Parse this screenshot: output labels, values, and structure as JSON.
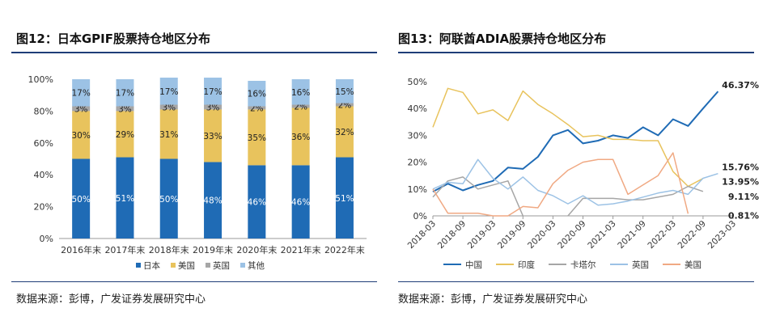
{
  "left": {
    "title": "图12：日本GPIF股票持仓地区分布",
    "source": "数据来源：彭博，广发证券发展研究中心",
    "chart_data": {
      "type": "bar",
      "stacked": true,
      "categories": [
        "2016年末",
        "2017年末",
        "2018年末",
        "2019年末",
        "2020年末",
        "2021年末",
        "2022年末"
      ],
      "yticks": [
        "0%",
        "20%",
        "40%",
        "60%",
        "80%",
        "100%"
      ],
      "ylim": [
        0,
        100
      ],
      "legend_position": "bottom",
      "series": [
        {
          "name": "日本",
          "color": "#1f6bb5",
          "values": [
            50,
            51,
            50,
            48,
            46,
            46,
            51
          ],
          "labels": [
            "50%",
            "51%",
            "50%",
            "48%",
            "46%",
            "46%",
            "51%"
          ]
        },
        {
          "name": "美国",
          "color": "#e8c35d",
          "values": [
            30,
            29,
            31,
            33,
            35,
            36,
            32
          ],
          "labels": [
            "30%",
            "29%",
            "31%",
            "33%",
            "35%",
            "36%",
            "32%"
          ]
        },
        {
          "name": "英国",
          "color": "#a6a6a6",
          "values": [
            3,
            3,
            3,
            3,
            2,
            2,
            2
          ],
          "labels": [
            "3%",
            "3%",
            "3%",
            "3%",
            "2%",
            "2%",
            "2%"
          ]
        },
        {
          "name": "其他",
          "color": "#9cc2e5",
          "values": [
            17,
            17,
            17,
            17,
            16,
            16,
            15
          ],
          "labels": [
            "17%",
            "17%",
            "17%",
            "17%",
            "16%",
            "16%",
            "15%"
          ]
        }
      ]
    }
  },
  "right": {
    "title": "图13：阿联酋ADIA股票持仓地区分布",
    "source": "数据来源：彭博，广发证券发展研究中心",
    "chart_data": {
      "type": "line",
      "x": [
        "2018-03",
        "2018-06",
        "2018-09",
        "2018-12",
        "2019-03",
        "2019-06",
        "2019-09",
        "2019-12",
        "2020-03",
        "2020-06",
        "2020-09",
        "2020-12",
        "2021-03",
        "2021-06",
        "2021-09",
        "2021-12",
        "2022-03",
        "2022-06",
        "2022-09",
        "2022-12",
        "2023-03"
      ],
      "xticks": [
        "2018-03",
        "2018-09",
        "2019-03",
        "2019-09",
        "2020-03",
        "2020-09",
        "2021-03",
        "2021-09",
        "2022-03",
        "2022-09",
        "2023-03"
      ],
      "yticks": [
        "0%",
        "10%",
        "20%",
        "30%",
        "40%",
        "50%"
      ],
      "ylim": [
        0,
        50
      ],
      "legend_position": "bottom",
      "series": [
        {
          "name": "中国",
          "color": "#1f6bb5",
          "width": 2,
          "values": [
            9,
            12,
            9.5,
            11.5,
            13,
            18,
            17.5,
            22,
            30,
            32,
            27,
            28,
            30,
            29,
            33,
            30,
            36,
            33.5,
            40,
            46.37,
            null
          ],
          "end_label": "46.37%"
        },
        {
          "name": "印度",
          "color": "#e8c35d",
          "width": 1.5,
          "values": [
            33,
            47.5,
            46,
            38,
            39.5,
            35.5,
            46.5,
            41.5,
            38,
            34,
            29.5,
            30,
            28.5,
            28.5,
            28,
            28,
            16.5,
            11,
            13.95,
            null,
            null
          ],
          "end_label": "13.95%"
        },
        {
          "name": "卡塔尔",
          "color": "#a6a6a6",
          "width": 1.5,
          "values": [
            7,
            13,
            14.5,
            10,
            11.5,
            13,
            0,
            null,
            null,
            0,
            6.5,
            6.5,
            6.5,
            6,
            6,
            7,
            8,
            11,
            9.11,
            null,
            null
          ],
          "end_label": "9.11%"
        },
        {
          "name": "英国",
          "color": "#9cc2e5",
          "width": 1.5,
          "values": [
            10,
            12.5,
            12,
            21,
            14,
            10,
            14.5,
            9.5,
            7.5,
            4.5,
            7.5,
            4,
            4.5,
            5.5,
            7,
            8.5,
            9.5,
            8,
            14,
            15.76,
            null
          ],
          "end_label": "15.76%"
        },
        {
          "name": "美国",
          "color": "#f0a983",
          "width": 1.5,
          "values": [
            10,
            1,
            1,
            1,
            0,
            0,
            3.5,
            3,
            12,
            17,
            20,
            21,
            21,
            8,
            11.5,
            15,
            23.5,
            0.81,
            null,
            null,
            null
          ],
          "end_label": "0.81%"
        }
      ]
    }
  }
}
